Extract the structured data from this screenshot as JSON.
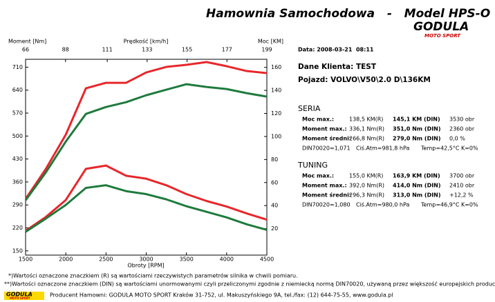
{
  "header": {
    "title": "Hamownia Samochodowa   -   Model HPS-O"
  },
  "logo": {
    "name": "GODULA",
    "sub": "MOTO SPORT"
  },
  "chart_data": {
    "type": "line",
    "y_label": "Moment [Nm]",
    "y2_label": "Moc [KM]",
    "x_label": "Obroty [RPM]",
    "x2_label": "Prędkość [km/h]",
    "x": [
      1500,
      1750,
      2000,
      2250,
      2500,
      2750,
      3000,
      3250,
      3500,
      3750,
      4000,
      4250,
      4500
    ],
    "xlim": [
      1500,
      4500
    ],
    "xticks": [
      1500,
      2000,
      2500,
      3000,
      3500,
      4000,
      4500
    ],
    "x2lim": [
      66,
      199
    ],
    "x2ticks": [
      66,
      88,
      111,
      133,
      155,
      177,
      199
    ],
    "ylim": [
      137,
      734
    ],
    "yticks": [
      150,
      220,
      290,
      360,
      430,
      500,
      570,
      640,
      710
    ],
    "y2lim": [
      -3,
      167
    ],
    "y2ticks": [
      20,
      40,
      60,
      80,
      100,
      120,
      140,
      160
    ],
    "series": [
      {
        "color": "#e8262a",
        "axis": "y2",
        "values": [
          45.8,
          71.6,
          101.6,
          141.8,
          146.6,
          146.6,
          155.6,
          160.4,
          162.2,
          164.6,
          161,
          156.8,
          155
        ]
      },
      {
        "color": "#1e7a3c",
        "axis": "y2",
        "values": [
          44.6,
          68.6,
          95.6,
          119.6,
          125.6,
          129.8,
          135.8,
          140.6,
          145.4,
          143,
          141.2,
          137.6,
          134.6
        ]
      },
      {
        "color": "#e8262a",
        "values": [
          211,
          253,
          305,
          400,
          410,
          379,
          370,
          350,
          323,
          302,
          285,
          264,
          245
        ]
      },
      {
        "color": "#1e7a3c",
        "values": [
          208,
          248,
          290,
          342,
          350,
          332,
          323,
          307,
          286,
          269,
          252,
          231,
          214
        ]
      }
    ]
  },
  "info": {
    "date": "Data: 2008-03-21  08:11",
    "client": "Dane Klienta: TEST",
    "vehicle": "Pojazd: VOLVO\\V50\\2.0 D\\136KM",
    "seria": {
      "title": "SERIA",
      "rows": [
        [
          "Moc max.:",
          "138,5 KM(R)",
          "145,1 KM (DIN)",
          "3530 obr"
        ],
        [
          "Moment max.:",
          "336,1 Nm(R)",
          "351,0 Nm (DIN)",
          "2360 obr"
        ],
        [
          "Moment średni:",
          "266,8 Nm(R)",
          "279,0 Nm (DIN)",
          "0,0 %"
        ]
      ],
      "footer": [
        "DIN70020=1,071",
        "Ciś.Atm=981,8 hPa",
        "Temp=42,5°C  K=0%"
      ]
    },
    "tuning": {
      "title": "TUNING",
      "rows": [
        [
          "Moc max.:",
          "155,0 KM(R)",
          "163,9 KM (DIN)",
          "3700 obr"
        ],
        [
          "Moment max.:",
          "392,0 Nm(R)",
          "414,0 Nm (DIN)",
          "2410 obr"
        ],
        [
          "Moment średni:",
          "296,3 Nm(R)",
          "313,0 Nm (DIN)",
          "+12,2 %"
        ]
      ],
      "footer": [
        "DIN70020=1,080",
        "Ciś.Atm=980,0 hPa",
        "Temp=46,9°C  K=0%"
      ]
    }
  },
  "footer": {
    "note1": "*)Wartości oznaczone znaczkiem (R) są wartościami rzeczywistych parametrów silnika w chwili pomiaru.",
    "note2": "**)Wartości oznaczone znaczkiem (DIN) są wartościami unormowanymi czyli przeliczonymi zgodnie z niemiecką normą DIN70020, używaną przez większość europejskich producentów samochodów.",
    "producer": "Producent Hamowni: GODULA MOTO SPORT Kraków 31-752, ul. Makuszyńskiego 9A, tel./fax: (12) 644-75-55, www.godula.pl"
  }
}
